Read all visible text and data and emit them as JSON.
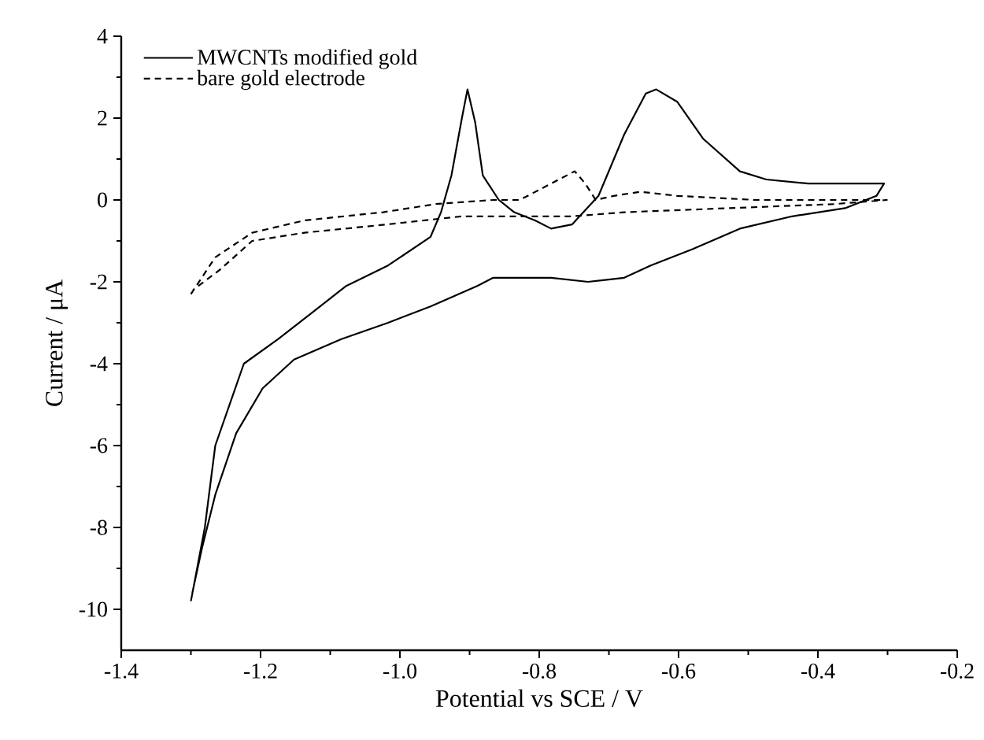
{
  "chart_data": {
    "type": "line",
    "xlabel": "Potential vs SCE / V",
    "ylabel": "Current / μA",
    "xlim": [
      -1.4,
      -0.2
    ],
    "ylim": [
      -11,
      4
    ],
    "xticks": [
      -1.4,
      -1.2,
      {
        "value": -1.0,
        "label": "-1.0"
      },
      -0.8,
      -0.6,
      -0.4,
      -0.2
    ],
    "yticks": [
      -10,
      -8,
      -6,
      -4,
      -2,
      0,
      2,
      4
    ],
    "legend": "top left",
    "grid": false,
    "marker": "none",
    "series": [
      {
        "name": "MWCNTs modified gold",
        "color": "#000000",
        "line_style": "solid",
        "x": [
          -1.3,
          -1.28,
          -1.265,
          -1.224,
          -1.175,
          -1.122,
          -1.077,
          -1.017,
          -0.956,
          -0.941,
          -0.926,
          -0.911,
          -0.903,
          -0.892,
          -0.881,
          -0.858,
          -0.836,
          -0.806,
          -0.783,
          -0.753,
          -0.715,
          -0.678,
          -0.647,
          -0.632,
          -0.602,
          -0.565,
          -0.512,
          -0.474,
          -0.414,
          -0.339,
          -0.305,
          -0.316,
          -0.361,
          -0.437,
          -0.512,
          -0.58,
          -0.64,
          -0.678,
          -0.73,
          -0.783,
          -0.828,
          -0.866,
          -0.889,
          -0.956,
          -1.017,
          -1.084,
          -1.152,
          -1.197,
          -1.235,
          -1.265,
          -1.284,
          -1.298
        ],
        "values": [
          -9.8,
          -8.0,
          -6.0,
          -4.0,
          -3.4,
          -2.7,
          -2.1,
          -1.6,
          -0.9,
          -0.3,
          0.6,
          2.0,
          2.7,
          1.9,
          0.6,
          0.0,
          -0.3,
          -0.5,
          -0.7,
          -0.6,
          0.1,
          1.6,
          2.6,
          2.7,
          2.4,
          1.5,
          0.7,
          0.5,
          0.4,
          0.4,
          0.4,
          0.1,
          -0.2,
          -0.4,
          -0.7,
          -1.2,
          -1.6,
          -1.9,
          -2.0,
          -1.9,
          -1.9,
          -1.9,
          -2.1,
          -2.6,
          -3.0,
          -3.4,
          -3.9,
          -4.6,
          -5.7,
          -7.2,
          -8.5,
          -9.6
        ]
      },
      {
        "name": "bare gold electrode",
        "color": "#000000",
        "line_style": "dashed",
        "x": [
          -1.3,
          -1.265,
          -1.212,
          -1.137,
          -1.024,
          -0.949,
          -0.866,
          -0.828,
          -0.783,
          -0.749,
          -0.734,
          -0.719,
          -0.693,
          -0.655,
          -0.602,
          -0.489,
          -0.301,
          -0.376,
          -0.527,
          -0.678,
          -0.753,
          -0.83,
          -0.911,
          -1.02,
          -1.137,
          -1.212,
          -1.258,
          -1.297
        ],
        "values": [
          -2.3,
          -1.4,
          -0.8,
          -0.5,
          -0.3,
          -0.1,
          0.0,
          0.0,
          0.4,
          0.7,
          0.4,
          0.0,
          0.1,
          0.2,
          0.1,
          0.0,
          0.0,
          -0.1,
          -0.2,
          -0.3,
          -0.4,
          -0.4,
          -0.4,
          -0.6,
          -0.8,
          -1.0,
          -1.7,
          -2.2
        ]
      }
    ]
  }
}
